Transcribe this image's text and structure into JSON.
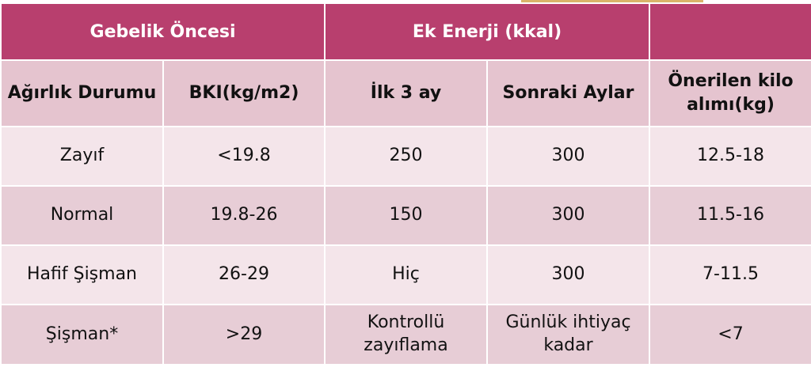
{
  "colors": {
    "header_bg": "#b83f6e",
    "subheader_bg": "#e5c4cf",
    "row_light": "#f4e5ea",
    "row_dark": "#e7cdd6"
  },
  "header": {
    "group1": "Gebelik Öncesi",
    "group2": "Ek Enerji (kkal)",
    "group3": ""
  },
  "subheader": {
    "col1": "Ağırlık Durumu",
    "col2": "BKI(kg/m2)",
    "col3": "İlk 3 ay",
    "col4": "Sonraki Aylar",
    "col5": "Önerilen kilo alımı(kg)"
  },
  "rows": [
    {
      "weight": "Zayıf",
      "bmi": "<19.8",
      "first3": "250",
      "later": "300",
      "gain": "12.5-18"
    },
    {
      "weight": "Normal",
      "bmi": "19.8-26",
      "first3": "150",
      "later": "300",
      "gain": "11.5-16"
    },
    {
      "weight": "Hafif Şişman",
      "bmi": "26-29",
      "first3": "Hiç",
      "later": "300",
      "gain": "7-11.5"
    },
    {
      "weight": "Şişman*",
      "bmi": ">29",
      "first3": "Kontrollü zayıflama",
      "later": "Günlük ihtiyaç kadar",
      "gain": "<7"
    }
  ]
}
